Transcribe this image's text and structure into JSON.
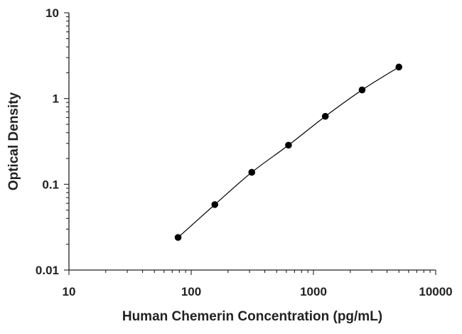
{
  "chart_data": {
    "type": "scatter",
    "xscale": "log",
    "yscale": "log",
    "xlim": [
      10,
      10000
    ],
    "ylim": [
      0.01,
      10
    ],
    "xlabel": "Human Chemerin Concentration (pg/mL)",
    "ylabel": "Optical Density",
    "x_ticks": [
      "10",
      "100",
      "1000",
      "10000"
    ],
    "y_ticks": [
      "10",
      "1",
      "0.1",
      "0.01"
    ],
    "grid": false,
    "legend": "none",
    "series": [
      {
        "x": [
          78.1,
          156,
          313,
          625,
          1250,
          2500,
          5000
        ],
        "y": [
          0.024,
          0.058,
          0.138,
          0.286,
          0.62,
          1.26,
          2.33
        ],
        "marker": "circle",
        "line": "smooth",
        "color": "#000000"
      }
    ]
  }
}
